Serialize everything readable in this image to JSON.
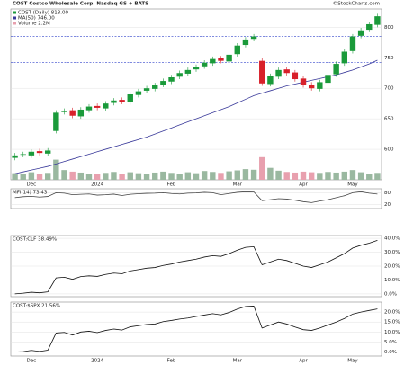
{
  "chart_data": [
    {
      "type": "candlestick",
      "title": "COST Costco Wholesale Corp. Nasdaq GS + BATS",
      "source": "©StockCharts.com",
      "categories": [
        null,
        null,
        "Dec",
        null,
        null,
        null,
        null,
        null,
        null,
        null,
        "2024",
        null,
        null,
        null,
        null,
        null,
        null,
        null,
        null,
        "Feb",
        null,
        null,
        null,
        null,
        null,
        null,
        null,
        "Mar",
        null,
        null,
        null,
        null,
        null,
        null,
        null,
        "Apr",
        null,
        null,
        null,
        null,
        null,
        "May",
        null,
        null,
        null
      ],
      "open": [
        586,
        591,
        590,
        597,
        593,
        630,
        661,
        664,
        654,
        664,
        671,
        667,
        676,
        681,
        677,
        689,
        696,
        699,
        706,
        711,
        719,
        724,
        731,
        736,
        741,
        749,
        744,
        756,
        771,
        781,
        745,
        707,
        719,
        731,
        726,
        716,
        706,
        699,
        709,
        723,
        741,
        761,
        786,
        796,
        804
      ],
      "high": [
        594,
        596,
        600,
        601,
        602,
        664,
        667,
        668,
        669,
        674,
        675,
        679,
        684,
        685,
        694,
        699,
        704,
        709,
        716,
        722,
        729,
        734,
        739,
        746,
        752,
        753,
        759,
        774,
        784,
        789,
        750,
        724,
        734,
        735,
        730,
        720,
        710,
        714,
        726,
        744,
        764,
        789,
        799,
        809,
        822
      ],
      "low": [
        582,
        587,
        586,
        590,
        589,
        626,
        657,
        651,
        650,
        660,
        664,
        663,
        672,
        674,
        673,
        685,
        692,
        695,
        702,
        707,
        715,
        720,
        727,
        732,
        737,
        741,
        740,
        752,
        767,
        777,
        704,
        703,
        715,
        721,
        711,
        701,
        696,
        695,
        705,
        719,
        737,
        757,
        782,
        792,
        800
      ],
      "close": [
        590,
        592,
        596,
        594,
        598,
        660,
        663,
        655,
        665,
        670,
        668,
        675,
        680,
        678,
        690,
        695,
        700,
        705,
        712,
        718,
        725,
        730,
        735,
        742,
        748,
        745,
        755,
        770,
        780,
        785,
        708,
        720,
        730,
        725,
        715,
        705,
        700,
        710,
        722,
        740,
        760,
        785,
        795,
        805,
        818
      ],
      "up_color": "#1a9a3a",
      "down_color": "#d8202a",
      "ylim": [
        550,
        830
      ],
      "yticks": [
        600,
        650,
        700,
        750,
        800
      ],
      "reference_lines": [
        785,
        742
      ],
      "reference_color": "#3344cc",
      "series": [
        {
          "name": "COST (Daily) 818.00",
          "color": "#1a9a3a"
        },
        {
          "name": "MA(50) 746.00",
          "color": "#3a3a9a",
          "values": [
            560,
            563,
            566,
            569,
            572,
            576,
            580,
            584,
            588,
            592,
            596,
            600,
            604,
            608,
            612,
            616,
            620,
            625,
            630,
            635,
            640,
            645,
            650,
            655,
            660,
            665,
            670,
            676,
            682,
            688,
            692,
            696,
            700,
            704,
            707,
            710,
            713,
            716,
            719,
            722,
            726,
            730,
            735,
            740,
            746
          ]
        },
        {
          "name": "Volume 2.2M",
          "color": "#e8a0ae",
          "up_color": "#9ab8a0",
          "ylim": [
            0,
            12
          ],
          "values": [
            2.1,
            1.8,
            2.4,
            1.9,
            2.2,
            6.4,
            3.1,
            2.6,
            2.3,
            2.0,
            1.9,
            2.2,
            2.5,
            1.8,
            2.4,
            2.1,
            2.0,
            2.3,
            2.6,
            2.2,
            1.9,
            2.4,
            2.1,
            2.8,
            2.5,
            2.2,
            2.7,
            3.0,
            3.4,
            3.2,
            7.2,
            3.8,
            2.9,
            2.5,
            2.3,
            2.6,
            2.4,
            2.2,
            2.5,
            2.3,
            2.6,
            3.1,
            2.4,
            2.0,
            2.2
          ]
        }
      ]
    },
    {
      "type": "line",
      "title": "MFI(14) 73.43",
      "color": "#444444",
      "values": [
        55,
        60,
        62,
        58,
        61,
        80,
        78,
        70,
        72,
        74,
        68,
        70,
        73,
        66,
        72,
        75,
        77,
        78,
        80,
        76,
        74,
        78,
        79,
        82,
        80,
        70,
        76,
        82,
        85,
        84,
        40,
        45,
        50,
        48,
        42,
        35,
        30,
        38,
        45,
        55,
        65,
        80,
        85,
        78,
        73.43
      ],
      "ylim": [
        0,
        100
      ],
      "yticks": [
        20,
        80
      ]
    },
    {
      "type": "line",
      "title": "COST:CLF 38.49%",
      "color": "#111111",
      "values": [
        0,
        0.5,
        1.2,
        0.8,
        1.5,
        11.5,
        12,
        10.5,
        12.5,
        13,
        12.6,
        14,
        15,
        14.5,
        16.5,
        17.5,
        18.5,
        19,
        20.5,
        21.5,
        23,
        24,
        25,
        26.5,
        27.5,
        27,
        29,
        31.5,
        33.5,
        34,
        21,
        23,
        25,
        24,
        22,
        20,
        19,
        21,
        23,
        26,
        29,
        33,
        35,
        36.5,
        38.49
      ],
      "ylim": [
        -2,
        42
      ],
      "yticks": [
        {
          "value": 0,
          "label": "0.0%"
        },
        {
          "value": 10,
          "label": "10.0%"
        },
        {
          "value": 20,
          "label": "20.0%"
        },
        {
          "value": 30,
          "label": "30.0%"
        },
        {
          "value": 40,
          "label": "40.0%"
        }
      ]
    },
    {
      "type": "line",
      "title": "COST:$SPX 21.56%",
      "color": "#111111",
      "values": [
        0,
        0.2,
        0.8,
        0.3,
        0.9,
        9.5,
        9.8,
        8.5,
        10,
        10.4,
        9.7,
        10.8,
        11.5,
        11,
        12.6,
        13.2,
        13.8,
        14,
        15.2,
        15.8,
        16.5,
        17,
        17.8,
        18.5,
        19.2,
        18.6,
        19.8,
        21.5,
        22.8,
        23,
        12,
        13.5,
        15,
        14,
        12.5,
        11.2,
        10.8,
        12,
        13.5,
        15,
        16.8,
        19,
        20,
        20.8,
        21.56
      ],
      "ylim": [
        -2,
        25
      ],
      "yticks": [
        {
          "value": 0,
          "label": "0.0%"
        },
        {
          "value": 5,
          "label": "5.0%"
        },
        {
          "value": 10,
          "label": "10.0%"
        },
        {
          "value": 15,
          "label": "15.0%"
        },
        {
          "value": 20,
          "label": "20.0%"
        }
      ]
    }
  ]
}
